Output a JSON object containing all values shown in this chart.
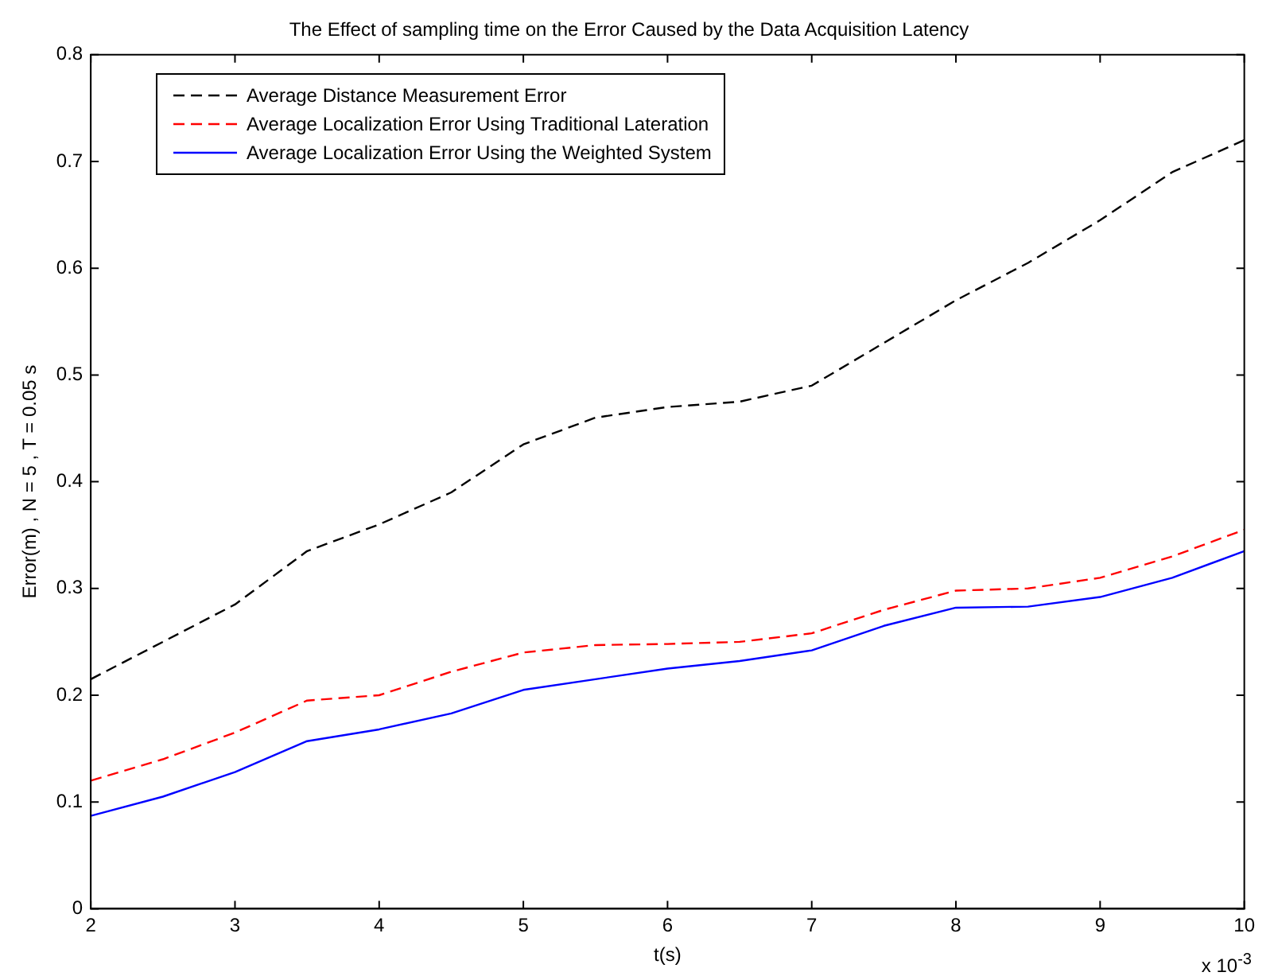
{
  "chart_data": {
    "type": "line",
    "title": "The Effect of sampling time on the Error Caused by the Data Acquisition Latency",
    "xlabel": "t(s)",
    "ylabel": "Error(m) , N = 5 , T = 0.05 s",
    "annotations": [
      "x 10$^{-3}$"
    ],
    "x": [
      2,
      2.5,
      3,
      3.5,
      4,
      4.5,
      5,
      5.5,
      6,
      6.5,
      7,
      7.5,
      8,
      8.5,
      9,
      9.5,
      10
    ],
    "series": [
      {
        "name": "Average Distance Measurement Error",
        "color": "#000000",
        "line_style": "dashed",
        "values": [
          0.215,
          0.25,
          0.285,
          0.335,
          0.36,
          0.39,
          0.435,
          0.46,
          0.47,
          0.475,
          0.49,
          0.53,
          0.57,
          0.605,
          0.645,
          0.69,
          0.72
        ]
      },
      {
        "name": "Average Localization Error Using Traditional Lateration",
        "color": "#ff0000",
        "line_style": "dashed",
        "values": [
          0.12,
          0.14,
          0.165,
          0.195,
          0.2,
          0.222,
          0.24,
          0.247,
          0.248,
          0.25,
          0.258,
          0.28,
          0.298,
          0.3,
          0.31,
          0.33,
          0.355
        ]
      },
      {
        "name": "Average Localization Error Using the Weighted System",
        "color": "#0000ff",
        "line_style": "solid",
        "values": [
          0.087,
          0.105,
          0.128,
          0.157,
          0.168,
          0.183,
          0.205,
          0.215,
          0.225,
          0.232,
          0.242,
          0.265,
          0.282,
          0.283,
          0.292,
          0.31,
          0.335
        ]
      }
    ],
    "xlim": [
      2,
      10
    ],
    "xticks": [
      2,
      3,
      4,
      5,
      6,
      7,
      8,
      9,
      10
    ],
    "ylim": [
      0,
      0.8
    ],
    "yticks": [
      0,
      0.1,
      0.2,
      0.3,
      0.4,
      0.5,
      0.6,
      0.7,
      0.8
    ],
    "grid": false,
    "legend": "top left",
    "marker": "none"
  }
}
